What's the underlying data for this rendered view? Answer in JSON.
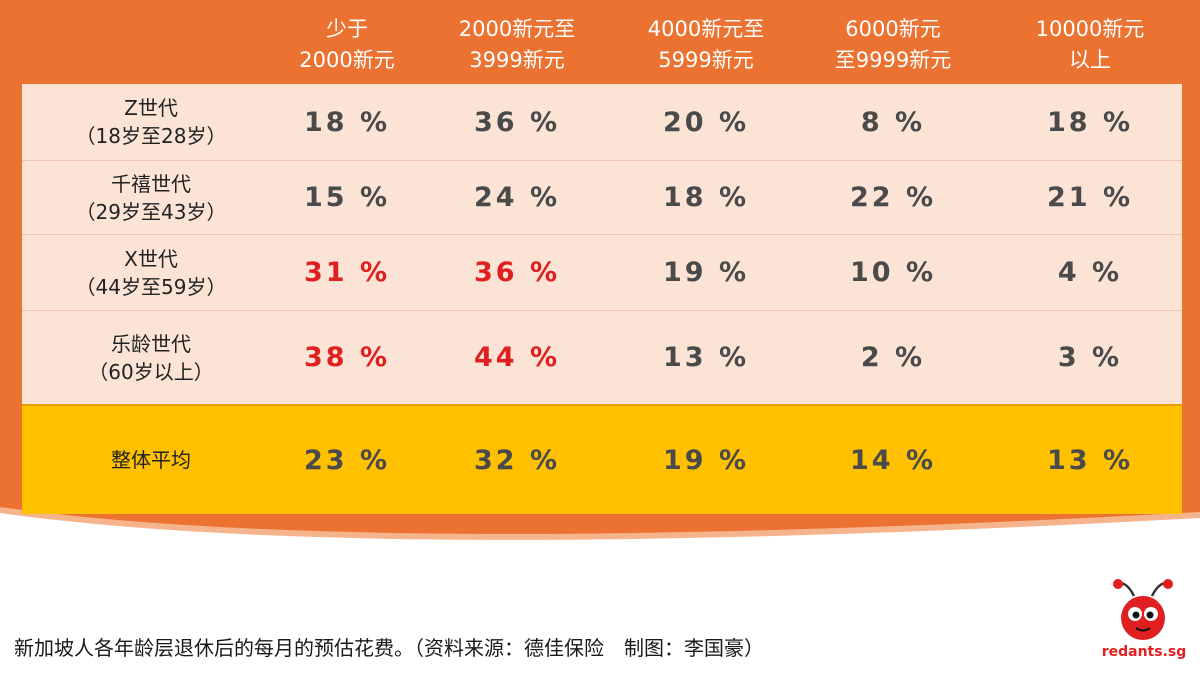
{
  "columns": [
    [
      "少于",
      "2000新元"
    ],
    [
      "2000新元至",
      "3999新元"
    ],
    [
      "4000新元至",
      "5999新元"
    ],
    [
      "6000新元",
      "至9999新元"
    ],
    [
      "10000新元",
      "以上"
    ]
  ],
  "rows": [
    {
      "label": [
        "Z世代",
        "（18岁至28岁）"
      ],
      "values": [
        "18 %",
        "36 %",
        "20 %",
        "8 %",
        "18 %"
      ],
      "highlight": [
        false,
        false,
        false,
        false,
        false
      ]
    },
    {
      "label": [
        "千禧世代",
        "（29岁至43岁）"
      ],
      "values": [
        "15 %",
        "24 %",
        "18 %",
        "22 %",
        "21 %"
      ],
      "highlight": [
        false,
        false,
        false,
        false,
        false
      ]
    },
    {
      "label": [
        "X世代",
        "（44岁至59岁）"
      ],
      "values": [
        "31 %",
        "36 %",
        "19 %",
        "10 %",
        "4 %"
      ],
      "highlight": [
        true,
        true,
        false,
        false,
        false
      ]
    },
    {
      "label": [
        "乐龄世代",
        "（60岁以上）"
      ],
      "values": [
        "38 %",
        "44 %",
        "13 %",
        "2 %",
        "3 %"
      ],
      "highlight": [
        true,
        true,
        false,
        false,
        false
      ]
    },
    {
      "label": [
        "整体平均"
      ],
      "values": [
        "23 %",
        "32 %",
        "19 %",
        "14 %",
        "13 %"
      ],
      "highlight": [
        false,
        false,
        false,
        false,
        false
      ]
    }
  ],
  "caption": "新加坡人各年龄层退休后的每月的预估花费。（资料来源：德佳保险　制图：李国豪）",
  "logo": {
    "text": "redants.sg"
  },
  "colors": {
    "background": "#ec7232",
    "row": "#fbe3d6",
    "average_row": "#ffc000",
    "value_text": "#4a4a4a",
    "highlight_text": "#e02020"
  },
  "chart_data": {
    "type": "table",
    "columns": [
      "少于2000新元",
      "2000新元至3999新元",
      "4000新元至5999新元",
      "6000新元至9999新元",
      "10000新元以上"
    ],
    "rows": [
      "Z世代（18岁至28岁）",
      "千禧世代（29岁至43岁）",
      "X世代（44岁至59岁）",
      "乐龄世代（60岁以上）",
      "整体平均"
    ],
    "values": [
      [
        18,
        36,
        20,
        8,
        18
      ],
      [
        15,
        24,
        18,
        22,
        21
      ],
      [
        31,
        36,
        19,
        10,
        4
      ],
      [
        38,
        44,
        13,
        2,
        3
      ],
      [
        23,
        32,
        19,
        14,
        13
      ]
    ],
    "unit": "%"
  }
}
